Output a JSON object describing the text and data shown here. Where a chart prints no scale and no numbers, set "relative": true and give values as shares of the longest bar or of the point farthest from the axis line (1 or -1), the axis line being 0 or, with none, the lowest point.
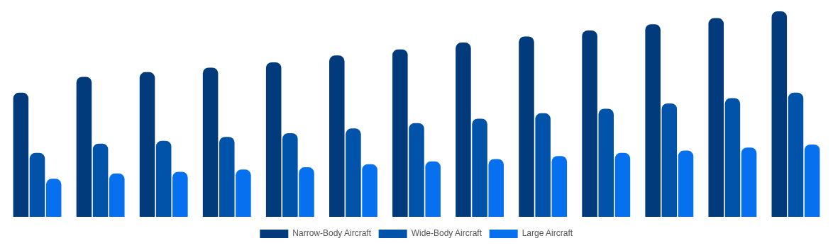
{
  "chart_data": {
    "type": "bar",
    "relative": true,
    "legend": "bottom",
    "categories": [
      null,
      null,
      null,
      null,
      null,
      null,
      null,
      null,
      null,
      null,
      null,
      null,
      null
    ],
    "series": [
      {
        "name": "Narrow-Body Aircraft",
        "color": "#023b7b",
        "values": [
          0.604,
          0.681,
          0.704,
          0.726,
          0.752,
          0.785,
          0.815,
          0.848,
          0.878,
          0.907,
          0.937,
          0.967,
          1
        ]
      },
      {
        "name": "Wide-Body Aircraft",
        "color": "#0152a9",
        "values": [
          0.311,
          0.356,
          0.37,
          0.389,
          0.407,
          0.43,
          0.456,
          0.478,
          0.504,
          0.526,
          0.552,
          0.578,
          0.604
        ]
      },
      {
        "name": "Large Aircraft",
        "color": "#0670ee",
        "values": [
          0.185,
          0.211,
          0.219,
          0.23,
          0.241,
          0.256,
          0.27,
          0.281,
          0.296,
          0.311,
          0.322,
          0.337,
          0.352
        ]
      }
    ]
  }
}
